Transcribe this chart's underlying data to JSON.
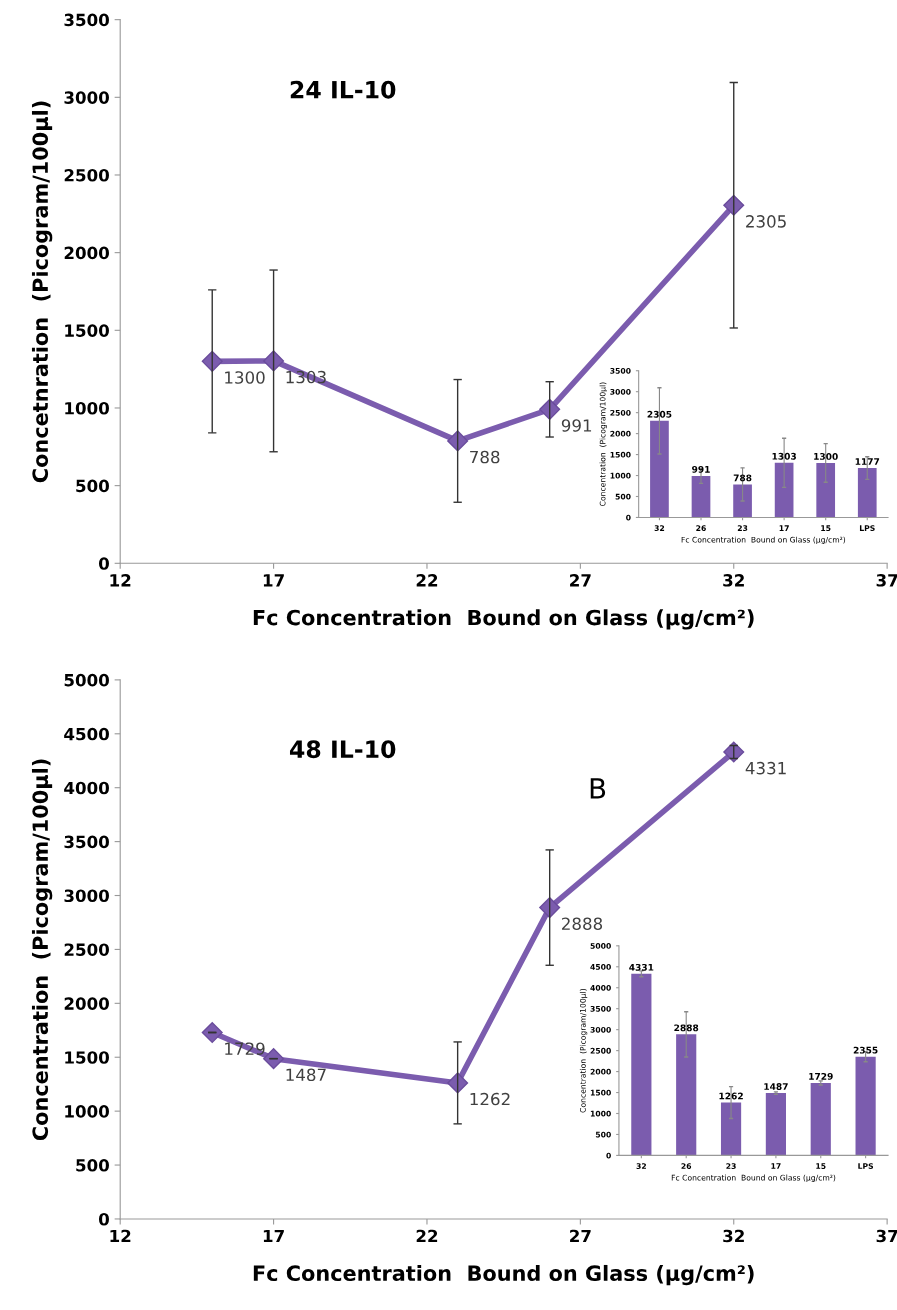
{
  "chart_data": [
    {
      "type": "line",
      "title": "24 IL-10",
      "xlabel": "Fc Concentration  Bound on Glass (µg/cm²)",
      "ylabel": "Concetnration  (Picogram/100µl)",
      "x": [
        15,
        17,
        23,
        26,
        32
      ],
      "series": [
        {
          "color": "#7b5cae",
          "values": [
            1300,
            1303,
            788,
            991,
            2305
          ],
          "errors": [
            460,
            585,
            395,
            178,
            790
          ]
        }
      ],
      "xlim": [
        12,
        37
      ],
      "xticks": [
        12,
        17,
        22,
        27,
        32,
        37
      ],
      "ylim": [
        0,
        3500
      ],
      "yticks": [
        0,
        500,
        1000,
        1500,
        2000,
        2500,
        3000,
        3500
      ],
      "marker": "diamond",
      "line_style": "solid",
      "data_labels": true,
      "grid": false,
      "legend": false
    },
    {
      "type": "bar",
      "xlabel": "Fc Concentration  Bound on Glass (µg/cm²)",
      "ylabel": "Concentration  (Picogram/100µl)",
      "categories": [
        "32",
        "26",
        "23",
        "17",
        "15",
        "LPS"
      ],
      "values": [
        2305,
        991,
        788,
        1303,
        1300,
        1177
      ],
      "errors": [
        790,
        178,
        395,
        585,
        460,
        270
      ],
      "color": "#7b5cae",
      "ylim": [
        0,
        3500
      ],
      "yticks": [
        0,
        500,
        1000,
        1500,
        2000,
        2500,
        3000,
        3500
      ],
      "data_labels": true,
      "grid": false,
      "legend": false
    },
    {
      "type": "line",
      "title": "48 IL-10",
      "xlabel": "Fc Concentration  Bound on Glass (µg/cm²)",
      "ylabel": "Concentration  (Picogram/100µl)",
      "x": [
        15,
        17,
        23,
        26,
        32
      ],
      "series": [
        {
          "color": "#7b5cae",
          "values": [
            1729,
            1487,
            1262,
            2888,
            4331
          ],
          "errors": [
            null,
            null,
            380,
            535,
            60
          ]
        }
      ],
      "xlim": [
        12,
        37
      ],
      "xticks": [
        12,
        17,
        22,
        27,
        32,
        37
      ],
      "ylim": [
        0,
        5000
      ],
      "yticks": [
        0,
        500,
        1000,
        1500,
        2000,
        2500,
        3000,
        3500,
        4000,
        4500,
        5000
      ],
      "marker": "diamond",
      "line_style": "solid",
      "data_labels": true,
      "grid": false,
      "legend": false,
      "annotations": [
        "B"
      ]
    },
    {
      "type": "bar",
      "xlabel": "Fc Concentration  Bound on Glass (µg/cm²)",
      "ylabel": "Concentration  (Picogram/100µl)",
      "categories": [
        "32",
        "26",
        "23",
        "17",
        "15",
        "LPS"
      ],
      "values": [
        4331,
        2888,
        1262,
        1487,
        1729,
        2355
      ],
      "errors": [
        70,
        540,
        380,
        30,
        50,
        120
      ],
      "color": "#7b5cae",
      "ylim": [
        0,
        5000
      ],
      "yticks": [
        0,
        500,
        1000,
        1500,
        2000,
        2500,
        3000,
        3500,
        4000,
        4500,
        5000
      ],
      "data_labels": true,
      "grid": false,
      "legend": false
    }
  ]
}
